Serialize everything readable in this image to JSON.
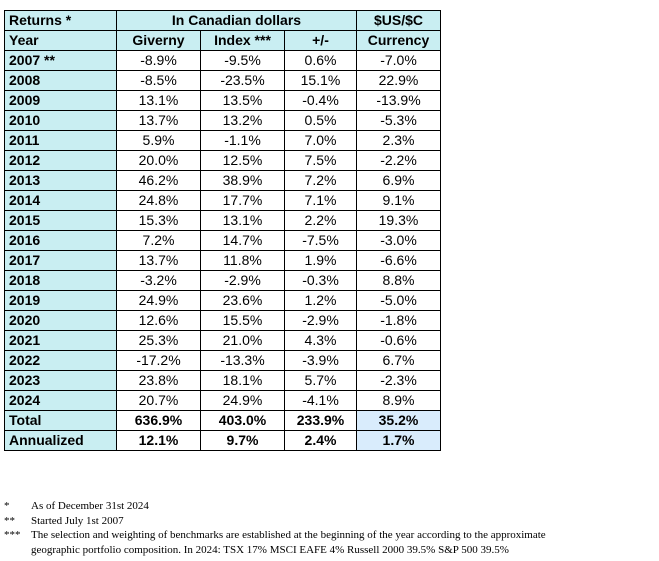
{
  "header": {
    "returns_label": "Returns *",
    "cad_label": "In Canadian dollars",
    "usd_label": "$US/$C",
    "year_label": "Year",
    "giverny_label": "Giverny",
    "index_label": "Index ***",
    "diff_label": "+/-",
    "currency_label": "Currency"
  },
  "rows": [
    {
      "year": "2007 **",
      "giverny": "-8.9%",
      "index": "-9.5%",
      "diff": "0.6%",
      "currency": "-7.0%"
    },
    {
      "year": "2008",
      "giverny": "-8.5%",
      "index": "-23.5%",
      "diff": "15.1%",
      "currency": "22.9%"
    },
    {
      "year": "2009",
      "giverny": "13.1%",
      "index": "13.5%",
      "diff": "-0.4%",
      "currency": "-13.9%"
    },
    {
      "year": "2010",
      "giverny": "13.7%",
      "index": "13.2%",
      "diff": "0.5%",
      "currency": "-5.3%"
    },
    {
      "year": "2011",
      "giverny": "5.9%",
      "index": "-1.1%",
      "diff": "7.0%",
      "currency": "2.3%"
    },
    {
      "year": "2012",
      "giverny": "20.0%",
      "index": "12.5%",
      "diff": "7.5%",
      "currency": "-2.2%"
    },
    {
      "year": "2013",
      "giverny": "46.2%",
      "index": "38.9%",
      "diff": "7.2%",
      "currency": "6.9%"
    },
    {
      "year": "2014",
      "giverny": "24.8%",
      "index": "17.7%",
      "diff": "7.1%",
      "currency": "9.1%"
    },
    {
      "year": "2015",
      "giverny": "15.3%",
      "index": "13.1%",
      "diff": "2.2%",
      "currency": "19.3%"
    },
    {
      "year": "2016",
      "giverny": "7.2%",
      "index": "14.7%",
      "diff": "-7.5%",
      "currency": "-3.0%"
    },
    {
      "year": "2017",
      "giverny": "13.7%",
      "index": "11.8%",
      "diff": "1.9%",
      "currency": "-6.6%"
    },
    {
      "year": "2018",
      "giverny": "-3.2%",
      "index": "-2.9%",
      "diff": "-0.3%",
      "currency": "8.8%"
    },
    {
      "year": "2019",
      "giverny": "24.9%",
      "index": "23.6%",
      "diff": "1.2%",
      "currency": "-5.0%"
    },
    {
      "year": "2020",
      "giverny": "12.6%",
      "index": "15.5%",
      "diff": "-2.9%",
      "currency": "-1.8%"
    },
    {
      "year": "2021",
      "giverny": "25.3%",
      "index": "21.0%",
      "diff": "4.3%",
      "currency": "-0.6%"
    },
    {
      "year": "2022",
      "giverny": "-17.2%",
      "index": "-13.3%",
      "diff": "-3.9%",
      "currency": "6.7%"
    },
    {
      "year": "2023",
      "giverny": "23.8%",
      "index": "18.1%",
      "diff": "5.7%",
      "currency": "-2.3%"
    },
    {
      "year": "2024",
      "giverny": "20.7%",
      "index": "24.9%",
      "diff": "-4.1%",
      "currency": "8.9%"
    }
  ],
  "total": {
    "label": "Total",
    "giverny": "636.9%",
    "index": "403.0%",
    "diff": "233.9%",
    "currency": "35.2%"
  },
  "annualized": {
    "label": "Annualized",
    "giverny": "12.1%",
    "index": "9.7%",
    "diff": "2.4%",
    "currency": "1.7%"
  },
  "notes": [
    {
      "mark": "*",
      "text": "As of December 31st 2024"
    },
    {
      "mark": "**",
      "text": "Started July 1st 2007"
    },
    {
      "mark": "***",
      "text": "The selection and weighting of benchmarks are established at the beginning of the year according to the approximate"
    },
    {
      "mark": "",
      "text": "geographic portfolio composition.   In 2024:  TSX 17%  MSCI EAFE 4%   Russell 2000 39.5%   S&P 500  39.5%"
    }
  ]
}
